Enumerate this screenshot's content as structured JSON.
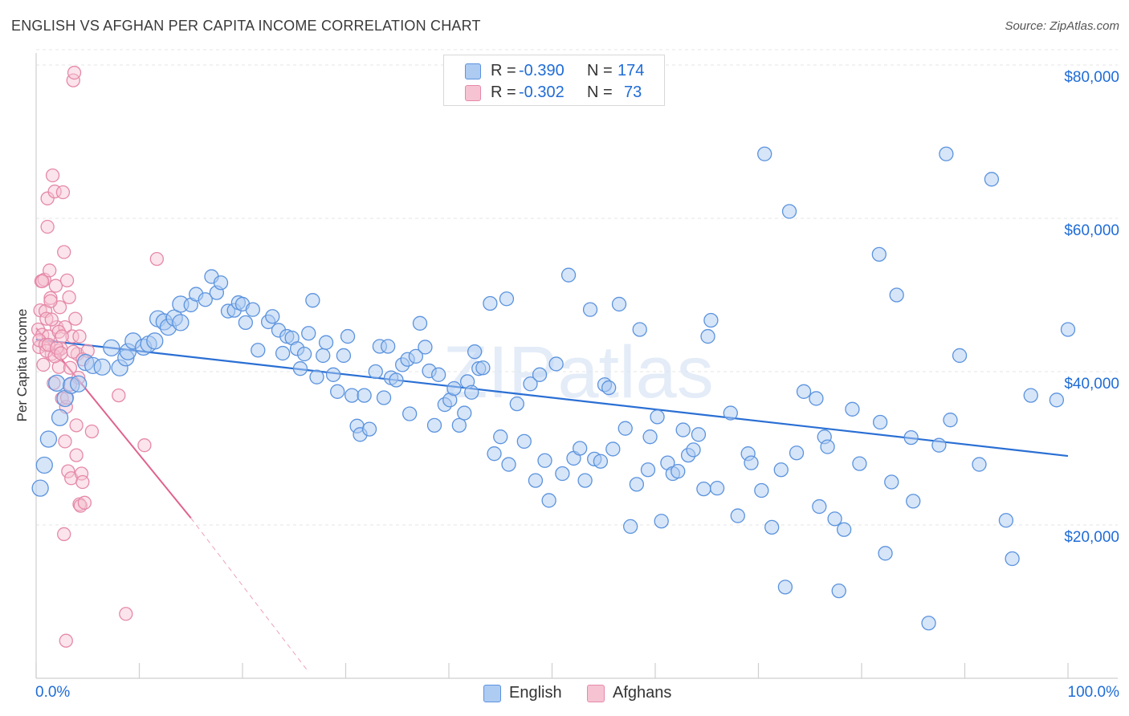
{
  "header": {
    "title": "ENGLISH VS AFGHAN PER CAPITA INCOME CORRELATION CHART",
    "source": "Source: ZipAtlas.com"
  },
  "watermark": "ZIPatlas",
  "legend": {
    "english": {
      "r_label": "R =",
      "r_value": "-0.390",
      "n_label": "N =",
      "n_value": "174"
    },
    "afghan": {
      "r_label": "R =",
      "r_value": "-0.302",
      "n_label": "N =",
      "n_value": "73"
    }
  },
  "colors": {
    "english_fill": "#aecbf2",
    "english_stroke": "#5b93de",
    "english_line": "#2a6fd4",
    "afghan_fill": "#f6c3d3",
    "afghan_stroke": "#e589a8",
    "afghan_line": "#e0628e",
    "grid": "#e6e6e6",
    "tick_text": "#1f6cd6"
  },
  "chart_data": {
    "type": "scatter",
    "title": "ENGLISH VS AFGHAN PER CAPITA INCOME CORRELATION CHART",
    "xlabel": "",
    "ylabel": "Per Capita Income",
    "xlim": [
      0,
      100
    ],
    "ylim": [
      0,
      82000
    ],
    "x_tick_labels": [
      "0.0%",
      "100.0%"
    ],
    "y_ticks": [
      20000,
      40000,
      60000,
      80000
    ],
    "y_tick_labels": [
      "$20,000",
      "$40,000",
      "$60,000",
      "$80,000"
    ],
    "legend_bottom": [
      "English",
      "Afghans"
    ],
    "series": [
      {
        "name": "English",
        "trend": {
          "x": [
            0,
            100
          ],
          "y": [
            44200,
            29000
          ]
        },
        "points": [
          [
            0.4,
            24800
          ],
          [
            0.8,
            27800
          ],
          [
            1.2,
            31200
          ],
          [
            2.0,
            38500
          ],
          [
            2.3,
            34000
          ],
          [
            2.8,
            36500
          ],
          [
            3.4,
            38200
          ],
          [
            4.1,
            38400
          ],
          [
            4.8,
            41200
          ],
          [
            5.5,
            40800
          ],
          [
            6.4,
            40600
          ],
          [
            7.3,
            43100
          ],
          [
            8.1,
            40500
          ],
          [
            8.7,
            41800
          ],
          [
            8.9,
            42600
          ],
          [
            9.4,
            44000
          ],
          [
            10.4,
            43200
          ],
          [
            10.9,
            43600
          ],
          [
            11.5,
            44000
          ],
          [
            11.8,
            46900
          ],
          [
            12.4,
            46500
          ],
          [
            12.8,
            45800
          ],
          [
            13.4,
            47000
          ],
          [
            14.0,
            46400
          ],
          [
            14.0,
            48800
          ],
          [
            15.0,
            48700
          ],
          [
            15.5,
            50100
          ],
          [
            16.4,
            49400
          ],
          [
            17.0,
            52400
          ],
          [
            17.5,
            50300
          ],
          [
            17.9,
            51600
          ],
          [
            18.6,
            47900
          ],
          [
            19.2,
            48000
          ],
          [
            19.6,
            49000
          ],
          [
            20.0,
            48800
          ],
          [
            20.3,
            46400
          ],
          [
            21.0,
            48100
          ],
          [
            21.5,
            42800
          ],
          [
            22.5,
            46500
          ],
          [
            22.9,
            47200
          ],
          [
            23.5,
            45400
          ],
          [
            23.9,
            42400
          ],
          [
            24.3,
            44600
          ],
          [
            24.8,
            44400
          ],
          [
            25.3,
            43000
          ],
          [
            25.6,
            40400
          ],
          [
            26.0,
            42300
          ],
          [
            26.4,
            45000
          ],
          [
            26.8,
            49300
          ],
          [
            27.2,
            39300
          ],
          [
            27.8,
            42100
          ],
          [
            28.1,
            43800
          ],
          [
            28.8,
            39600
          ],
          [
            29.2,
            37400
          ],
          [
            29.8,
            42100
          ],
          [
            30.2,
            44600
          ],
          [
            30.6,
            36900
          ],
          [
            31.1,
            32900
          ],
          [
            31.4,
            31800
          ],
          [
            31.8,
            36900
          ],
          [
            32.3,
            32500
          ],
          [
            32.9,
            40000
          ],
          [
            33.3,
            43300
          ],
          [
            33.7,
            36600
          ],
          [
            34.1,
            43300
          ],
          [
            34.4,
            39200
          ],
          [
            34.9,
            38900
          ],
          [
            35.5,
            40900
          ],
          [
            36.0,
            41600
          ],
          [
            36.2,
            34500
          ],
          [
            36.8,
            42000
          ],
          [
            37.2,
            46300
          ],
          [
            37.7,
            43200
          ],
          [
            38.1,
            40100
          ],
          [
            38.6,
            33000
          ],
          [
            39.0,
            39600
          ],
          [
            39.6,
            35700
          ],
          [
            40.1,
            36300
          ],
          [
            40.5,
            37800
          ],
          [
            41.0,
            33000
          ],
          [
            41.5,
            34600
          ],
          [
            41.8,
            38700
          ],
          [
            42.2,
            37300
          ],
          [
            42.5,
            42600
          ],
          [
            42.9,
            40400
          ],
          [
            43.3,
            40500
          ],
          [
            44.0,
            48900
          ],
          [
            44.4,
            29300
          ],
          [
            45.0,
            31500
          ],
          [
            45.6,
            49500
          ],
          [
            45.8,
            27900
          ],
          [
            46.6,
            35800
          ],
          [
            47.3,
            30900
          ],
          [
            47.9,
            38400
          ],
          [
            48.4,
            25800
          ],
          [
            48.8,
            39600
          ],
          [
            49.3,
            28400
          ],
          [
            49.7,
            23200
          ],
          [
            50.4,
            41000
          ],
          [
            51.0,
            26700
          ],
          [
            51.6,
            52600
          ],
          [
            52.1,
            28700
          ],
          [
            52.7,
            30000
          ],
          [
            53.2,
            25800
          ],
          [
            53.7,
            48100
          ],
          [
            54.1,
            28600
          ],
          [
            54.7,
            28300
          ],
          [
            55.1,
            38300
          ],
          [
            55.5,
            37900
          ],
          [
            55.9,
            29900
          ],
          [
            56.5,
            48800
          ],
          [
            57.1,
            32600
          ],
          [
            57.6,
            19800
          ],
          [
            58.2,
            25300
          ],
          [
            58.5,
            45500
          ],
          [
            59.3,
            27200
          ],
          [
            59.5,
            31500
          ],
          [
            60.2,
            34100
          ],
          [
            60.6,
            20500
          ],
          [
            61.2,
            28100
          ],
          [
            61.7,
            26700
          ],
          [
            62.2,
            27000
          ],
          [
            62.7,
            32400
          ],
          [
            63.2,
            29100
          ],
          [
            63.7,
            29800
          ],
          [
            64.2,
            31800
          ],
          [
            64.7,
            24700
          ],
          [
            65.1,
            44600
          ],
          [
            65.4,
            46700
          ],
          [
            66.0,
            24800
          ],
          [
            67.3,
            34600
          ],
          [
            68.0,
            21200
          ],
          [
            69.0,
            29300
          ],
          [
            69.3,
            28100
          ],
          [
            70.3,
            24500
          ],
          [
            70.6,
            68400
          ],
          [
            71.3,
            19700
          ],
          [
            72.2,
            27200
          ],
          [
            72.6,
            11900
          ],
          [
            73.0,
            60900
          ],
          [
            73.7,
            29400
          ],
          [
            74.4,
            37400
          ],
          [
            75.6,
            36500
          ],
          [
            75.9,
            22400
          ],
          [
            76.4,
            31500
          ],
          [
            76.7,
            30200
          ],
          [
            77.4,
            20800
          ],
          [
            77.8,
            11400
          ],
          [
            78.3,
            19400
          ],
          [
            79.1,
            35100
          ],
          [
            79.8,
            28000
          ],
          [
            81.7,
            55300
          ],
          [
            81.8,
            33400
          ],
          [
            82.3,
            16300
          ],
          [
            82.9,
            25600
          ],
          [
            83.4,
            50000
          ],
          [
            84.8,
            31400
          ],
          [
            85.0,
            23100
          ],
          [
            86.5,
            7200
          ],
          [
            87.5,
            30400
          ],
          [
            88.2,
            68400
          ],
          [
            88.6,
            33700
          ],
          [
            89.5,
            42100
          ],
          [
            91.4,
            27900
          ],
          [
            92.6,
            65100
          ],
          [
            94.0,
            20600
          ],
          [
            94.6,
            15600
          ],
          [
            96.4,
            36900
          ],
          [
            98.9,
            36300
          ],
          [
            100.0,
            45500
          ]
        ]
      },
      {
        "name": "Afghans",
        "trend": {
          "x": [
            0,
            15
          ],
          "y": [
            45700,
            20900
          ]
        },
        "trend_dashed": {
          "x": [
            15,
            26.3
          ],
          "y": [
            20900,
            1000
          ]
        },
        "points": [
          [
            0.2,
            45500
          ],
          [
            0.3,
            43200
          ],
          [
            0.4,
            48000
          ],
          [
            0.5,
            51800
          ],
          [
            0.6,
            44800
          ],
          [
            0.7,
            40900
          ],
          [
            0.8,
            52000
          ],
          [
            0.9,
            47900
          ],
          [
            1.0,
            46900
          ],
          [
            1.1,
            58900
          ],
          [
            1.1,
            62600
          ],
          [
            1.2,
            44600
          ],
          [
            1.3,
            53200
          ],
          [
            1.4,
            49600
          ],
          [
            1.5,
            42300
          ],
          [
            1.6,
            65600
          ],
          [
            1.7,
            38500
          ],
          [
            1.8,
            63500
          ],
          [
            1.9,
            51200
          ],
          [
            2.0,
            45800
          ],
          [
            2.1,
            42700
          ],
          [
            2.2,
            40600
          ],
          [
            2.3,
            48400
          ],
          [
            2.4,
            43000
          ],
          [
            2.5,
            36500
          ],
          [
            2.6,
            63400
          ],
          [
            2.7,
            55600
          ],
          [
            2.8,
            45800
          ],
          [
            2.9,
            35400
          ],
          [
            3.0,
            51900
          ],
          [
            3.1,
            27000
          ],
          [
            3.2,
            49700
          ],
          [
            3.3,
            40500
          ],
          [
            3.4,
            26100
          ],
          [
            3.5,
            44600
          ],
          [
            3.6,
            78000
          ],
          [
            3.7,
            79000
          ],
          [
            3.8,
            46900
          ],
          [
            3.9,
            29100
          ],
          [
            4.0,
            42300
          ],
          [
            4.1,
            39200
          ],
          [
            4.2,
            22700
          ],
          [
            4.3,
            22500
          ],
          [
            4.4,
            26700
          ],
          [
            4.5,
            25600
          ],
          [
            4.7,
            22900
          ],
          [
            5.0,
            42700
          ],
          [
            5.4,
            32200
          ],
          [
            8.0,
            36900
          ],
          [
            8.7,
            8400
          ],
          [
            10.5,
            30400
          ],
          [
            11.7,
            54700
          ],
          [
            0.3,
            44100
          ],
          [
            0.6,
            51800
          ],
          [
            0.9,
            43500
          ],
          [
            1.0,
            42700
          ],
          [
            1.2,
            43500
          ],
          [
            1.5,
            46800
          ],
          [
            1.8,
            42000
          ],
          [
            2.0,
            43100
          ],
          [
            2.2,
            45200
          ],
          [
            2.4,
            42400
          ],
          [
            2.7,
            18800
          ],
          [
            2.8,
            30900
          ],
          [
            3.0,
            36600
          ],
          [
            3.3,
            38300
          ],
          [
            3.6,
            42600
          ],
          [
            3.9,
            33000
          ],
          [
            4.2,
            44600
          ],
          [
            4.5,
            41600
          ],
          [
            2.9,
            4900
          ],
          [
            1.4,
            49200
          ],
          [
            2.5,
            44600
          ]
        ]
      }
    ]
  }
}
